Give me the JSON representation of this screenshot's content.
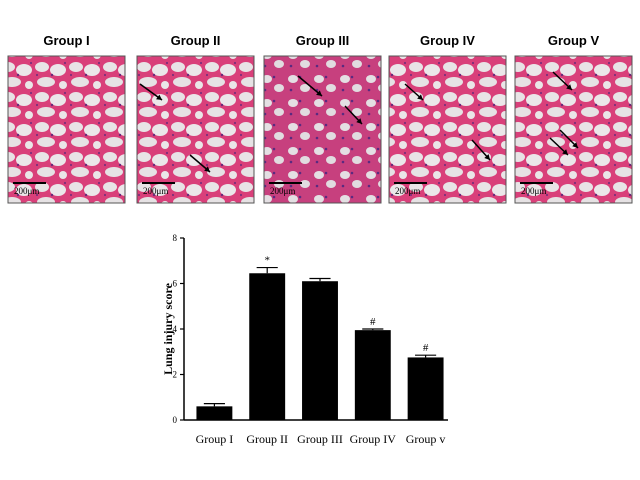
{
  "panels": [
    {
      "label": "Group I",
      "scale": "200μm"
    },
    {
      "label": "Group II",
      "scale": "200μm"
    },
    {
      "label": "Group III",
      "scale": "200μm"
    },
    {
      "label": "Group IV",
      "scale": "200μm"
    },
    {
      "label": "Group V",
      "scale": "200μm"
    }
  ],
  "chart_data": {
    "type": "bar",
    "y_label": "Lung injury score",
    "categories": [
      "Group I",
      "Group II",
      "Group III",
      "Group IV",
      "Group v"
    ],
    "values": [
      0.6,
      6.45,
      6.1,
      3.95,
      2.75
    ],
    "errors": [
      0.12,
      0.25,
      0.12,
      0.05,
      0.1
    ],
    "annotations": [
      null,
      "*",
      null,
      "#",
      "#"
    ],
    "color": "#000000",
    "ylim": [
      0,
      8
    ],
    "yticks": [
      0,
      2,
      4,
      6,
      8
    ]
  }
}
